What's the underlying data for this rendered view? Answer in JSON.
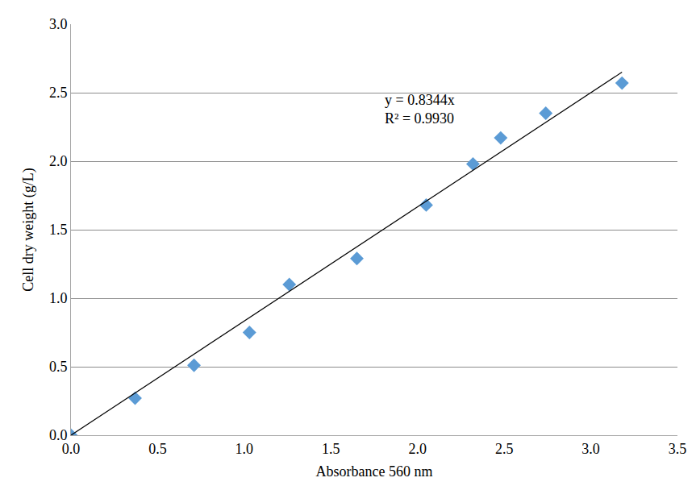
{
  "chart_data": {
    "type": "scatter",
    "x_label": "Absorbance 560 nm",
    "y_label": "Cell dry weight (g/L)",
    "xlim": [
      0,
      3.5
    ],
    "xticks": [
      {
        "value": 0,
        "label": "0.0"
      },
      {
        "value": 0.5,
        "label": "0.5"
      },
      {
        "value": 1,
        "label": "1.0"
      },
      {
        "value": 1.5,
        "label": "1.5"
      },
      {
        "value": 2,
        "label": "2.0"
      },
      {
        "value": 2.5,
        "label": "2.5"
      },
      {
        "value": 3,
        "label": "3.0"
      },
      {
        "value": 3.5,
        "label": "3.5"
      }
    ],
    "ylim": [
      0,
      3
    ],
    "yticks": [
      {
        "value": 0,
        "label": "0.0"
      },
      {
        "value": 0.5,
        "label": "0.5"
      },
      {
        "value": 1,
        "label": "1.0"
      },
      {
        "value": 1.5,
        "label": "1.5"
      },
      {
        "value": 2,
        "label": "2.0"
      },
      {
        "value": 2.5,
        "label": "2.5"
      },
      {
        "value": 3,
        "label": "3.0"
      }
    ],
    "grid": true,
    "annotations": [
      "y = 0.8344x",
      "R² = 0.9930"
    ],
    "series": [
      {
        "type": "scatter",
        "color": "#5b9bd5",
        "marker": "diamond",
        "x": [
          0,
          0.37,
          0.71,
          1.03,
          1.26,
          1.65,
          2.05,
          2.32,
          2.48,
          2.74,
          3.18
        ],
        "values": [
          0,
          0.27,
          0.51,
          0.75,
          1.1,
          1.29,
          1.68,
          1.98,
          2.17,
          2.35,
          2.57
        ]
      },
      {
        "type": "line",
        "color": "#000000",
        "line_style": "solid",
        "x": [
          0,
          3.18
        ],
        "values": [
          0,
          2.65
        ]
      }
    ]
  }
}
